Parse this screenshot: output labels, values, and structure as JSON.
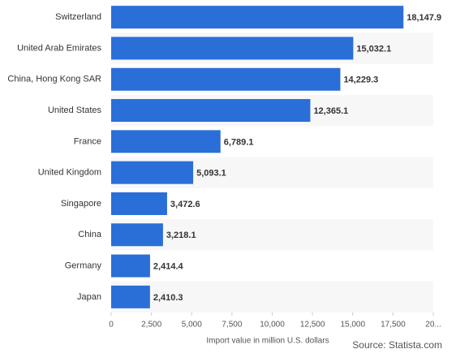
{
  "chart_data": {
    "type": "bar",
    "orientation": "horizontal",
    "categories": [
      "Switzerland",
      "United Arab Emirates",
      "China, Hong Kong SAR",
      "United States",
      "France",
      "United Kingdom",
      "Singapore",
      "China",
      "Germany",
      "Japan"
    ],
    "values": [
      18147.9,
      15032.1,
      14229.3,
      12365.1,
      6789.1,
      5093.1,
      3472.6,
      3218.1,
      2414.4,
      2410.3
    ],
    "value_labels": [
      "18,147.9",
      "15,032.1",
      "14,229.3",
      "12,365.1",
      "6,789.1",
      "5,093.1",
      "3,472.6",
      "3,218.1",
      "2,414.4",
      "2,410.3"
    ],
    "color": "#2a6ed8",
    "xlim": [
      0,
      20000
    ],
    "xticks": [
      0,
      {
        "value": 2500,
        "label": "2,500"
      },
      {
        "value": 5000,
        "label": "5,000"
      },
      {
        "value": 7500,
        "label": "7,500"
      },
      {
        "value": 10000,
        "label": "10,000"
      },
      {
        "value": 12500,
        "label": "12,500"
      },
      {
        "value": 15000,
        "label": "15,000"
      },
      {
        "value": 17500,
        "label": "17,500"
      },
      {
        "value": 20000,
        "label": "20..."
      }
    ],
    "x_label": "Import value in million U.S. dollars",
    "source": "Source: Statista.com"
  }
}
